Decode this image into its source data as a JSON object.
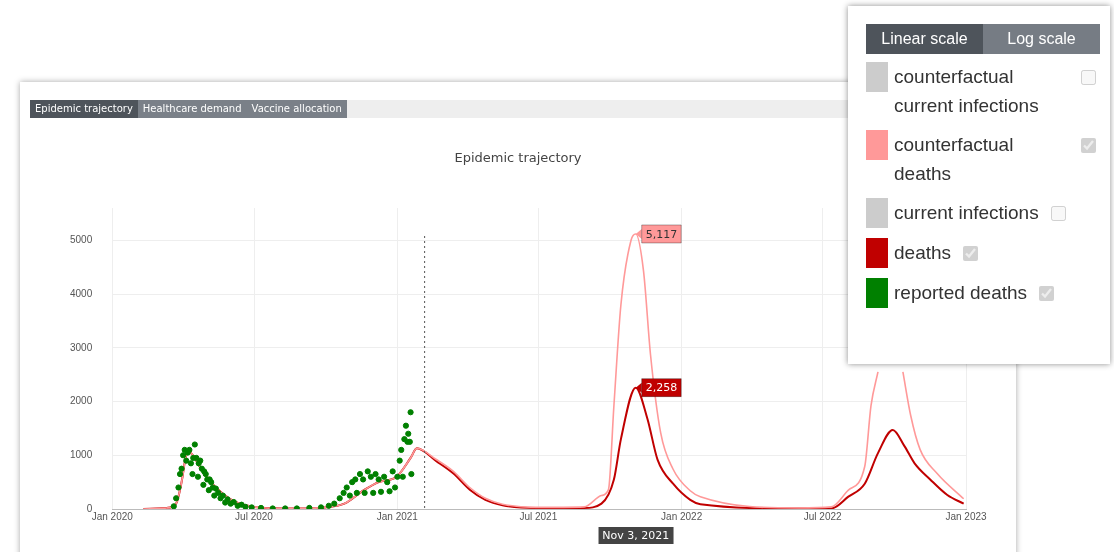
{
  "chart_data": {
    "type": "line",
    "title": "Epidemic trajectory",
    "annotations": [
      "Epidemic trajectory",
      "Healthcare demand",
      "Vaccine allocation",
      "Linear scale",
      "Log scale",
      "Nov 3, 2021",
      {
        "text": "5,117",
        "x": "2021-11-03",
        "y": 5117
      },
      {
        "text": "2,258",
        "x": "2021-11-03",
        "y": 2258
      }
    ],
    "xlim": [
      "2020-01-01",
      "2023-01-01"
    ],
    "xticks": [
      {
        "value": "2020-01-01",
        "label": "Jan 2020"
      },
      {
        "value": "2020-07-01",
        "label": "Jul 2020"
      },
      {
        "value": "2021-01-01",
        "label": "Jan 2021"
      },
      {
        "value": "2021-07-01",
        "label": "Jul 2021"
      },
      {
        "value": "2022-01-01",
        "label": "Jan 2022"
      },
      {
        "value": "2022-07-01",
        "label": "Jul 2022"
      },
      {
        "value": "2023-01-01",
        "label": "Jan 2023"
      }
    ],
    "ylim": [
      0,
      5600
    ],
    "yticks": [
      0,
      1000,
      2000,
      3000,
      4000,
      5000
    ],
    "grid": true,
    "legend": "top right",
    "marker": "none",
    "line_style": "solid",
    "ref_lines": [
      {
        "axis": "x",
        "value": "2021-02-05",
        "color": "#555555",
        "line_style": "dotted"
      }
    ],
    "series": [
      {
        "name": "counterfactual current infections",
        "color": "#cccccc"
      },
      {
        "name": "counterfactual deaths",
        "color": "#ff9999",
        "x": [
          "2020-02-10",
          "2020-03-11",
          "2020-03-23",
          "2020-03-30",
          "2020-04-05",
          "2020-04-09",
          "2020-04-24",
          "2020-05-13",
          "2020-06-01",
          "2020-06-20",
          "2020-07-16",
          "2020-09-04",
          "2020-09-30",
          "2020-10-25",
          "2020-11-19",
          "2020-12-08",
          "2020-12-31",
          "2021-01-18",
          "2021-01-26",
          "2021-02-20",
          "2021-03-14",
          "2021-04-04",
          "2021-04-24",
          "2021-05-16",
          "2021-06-27",
          "2021-08-29",
          "2021-09-20",
          "2021-09-29",
          "2021-10-06",
          "2021-10-15",
          "2021-10-28",
          "2021-11-03",
          "2021-11-13",
          "2021-11-22",
          "2021-12-05",
          "2021-12-21",
          "2022-01-12",
          "2022-01-25",
          "2022-05-31",
          "2022-07-12",
          "2022-08-03",
          "2022-08-24",
          "2022-09-01",
          "2022-09-10",
          "2022-09-23",
          "2022-10-03",
          "2022-10-12",
          "2022-10-22",
          "2022-11-03",
          "2022-11-25",
          "2022-12-29"
        ],
        "values": [
          0,
          20,
          100,
          500,
          1000,
          1050,
          750,
          400,
          180,
          70,
          20,
          10,
          30,
          100,
          350,
          500,
          600,
          950,
          1130,
          920,
          700,
          400,
          200,
          90,
          30,
          40,
          250,
          360,
          1920,
          3800,
          5000,
          5117,
          4430,
          2870,
          1420,
          740,
          340,
          230,
          20,
          40,
          350,
          790,
          1920,
          2550,
          null,
          null,
          2550,
          1740,
          1110,
          660,
          190
        ]
      },
      {
        "name": "current infections",
        "color": "#cccccc"
      },
      {
        "name": "deaths",
        "color": "#c00000",
        "x": [
          "2020-02-10",
          "2020-03-11",
          "2020-03-23",
          "2020-03-30",
          "2020-04-05",
          "2020-04-09",
          "2020-04-24",
          "2020-05-13",
          "2020-06-01",
          "2020-06-20",
          "2020-07-16",
          "2020-09-04",
          "2020-09-30",
          "2020-10-25",
          "2020-11-19",
          "2020-12-08",
          "2020-12-31",
          "2021-01-18",
          "2021-01-26",
          "2021-02-20",
          "2021-03-14",
          "2021-04-04",
          "2021-04-24",
          "2021-05-16",
          "2021-06-27",
          "2021-08-29",
          "2021-09-20",
          "2021-10-06",
          "2021-10-15",
          "2021-11-03",
          "2021-11-18",
          "2021-12-01",
          "2021-12-21",
          "2022-01-12",
          "2022-01-25",
          "2022-05-31",
          "2022-07-12",
          "2022-08-03",
          "2022-08-24",
          "2022-09-10",
          "2022-09-29",
          "2022-10-14",
          "2022-10-27",
          "2022-11-16",
          "2022-12-08",
          "2022-12-29"
        ],
        "values": [
          0,
          20,
          100,
          500,
          1000,
          1050,
          750,
          400,
          180,
          70,
          20,
          10,
          30,
          100,
          350,
          500,
          600,
          950,
          1130,
          890,
          660,
          360,
          170,
          70,
          20,
          20,
          100,
          550,
          1300,
          2258,
          1680,
          920,
          470,
          170,
          90,
          10,
          10,
          230,
          470,
          1040,
          1470,
          1170,
          850,
          550,
          260,
          100
        ]
      },
      {
        "name": "reported deaths",
        "color": "#008000",
        "type": "scatter",
        "marker": "circle",
        "x": [
          "2020-03-20",
          "2020-03-23",
          "2020-03-26",
          "2020-03-28",
          "2020-03-30",
          "2020-04-01",
          "2020-04-03",
          "2020-04-05",
          "2020-04-07",
          "2020-04-09",
          "2020-04-11",
          "2020-04-13",
          "2020-04-14",
          "2020-04-16",
          "2020-04-18",
          "2020-04-20",
          "2020-04-21",
          "2020-04-23",
          "2020-04-25",
          "2020-04-27",
          "2020-04-28",
          "2020-04-30",
          "2020-05-02",
          "2020-05-04",
          "2020-05-05",
          "2020-05-07",
          "2020-05-09",
          "2020-05-11",
          "2020-05-13",
          "2020-05-16",
          "2020-05-19",
          "2020-05-22",
          "2020-05-25",
          "2020-05-28",
          "2020-06-01",
          "2020-06-05",
          "2020-06-10",
          "2020-06-15",
          "2020-06-20",
          "2020-06-28",
          "2020-07-10",
          "2020-07-25",
          "2020-08-10",
          "2020-08-25",
          "2020-09-10",
          "2020-09-25",
          "2020-10-05",
          "2020-10-12",
          "2020-10-19",
          "2020-10-24",
          "2020-10-28",
          "2020-11-01",
          "2020-11-04",
          "2020-11-08",
          "2020-11-10",
          "2020-11-14",
          "2020-11-18",
          "2020-11-20",
          "2020-11-24",
          "2020-11-28",
          "2020-12-01",
          "2020-12-04",
          "2020-12-08",
          "2020-12-11",
          "2020-12-15",
          "2020-12-19",
          "2020-12-22",
          "2020-12-26",
          "2020-12-29",
          "2021-01-01",
          "2021-01-04",
          "2021-01-06",
          "2021-01-08",
          "2021-01-10",
          "2021-01-12",
          "2021-01-14",
          "2021-01-15",
          "2021-01-17",
          "2021-01-18",
          "2021-01-19"
        ],
        "values": [
          50,
          200,
          400,
          650,
          750,
          1000,
          1100,
          900,
          1050,
          1100,
          850,
          650,
          950,
          1200,
          950,
          600,
          850,
          900,
          750,
          450,
          700,
          650,
          550,
          350,
          550,
          500,
          400,
          250,
          380,
          300,
          200,
          250,
          120,
          180,
          100,
          130,
          60,
          80,
          40,
          30,
          20,
          10,
          10,
          10,
          20,
          30,
          60,
          100,
          200,
          300,
          400,
          250,
          500,
          550,
          300,
          650,
          550,
          300,
          700,
          600,
          300,
          650,
          550,
          320,
          600,
          500,
          330,
          700,
          400,
          600,
          900,
          1100,
          600,
          1300,
          1550,
          1250,
          1400,
          1250,
          1800,
          650
        ]
      }
    ]
  }
}
